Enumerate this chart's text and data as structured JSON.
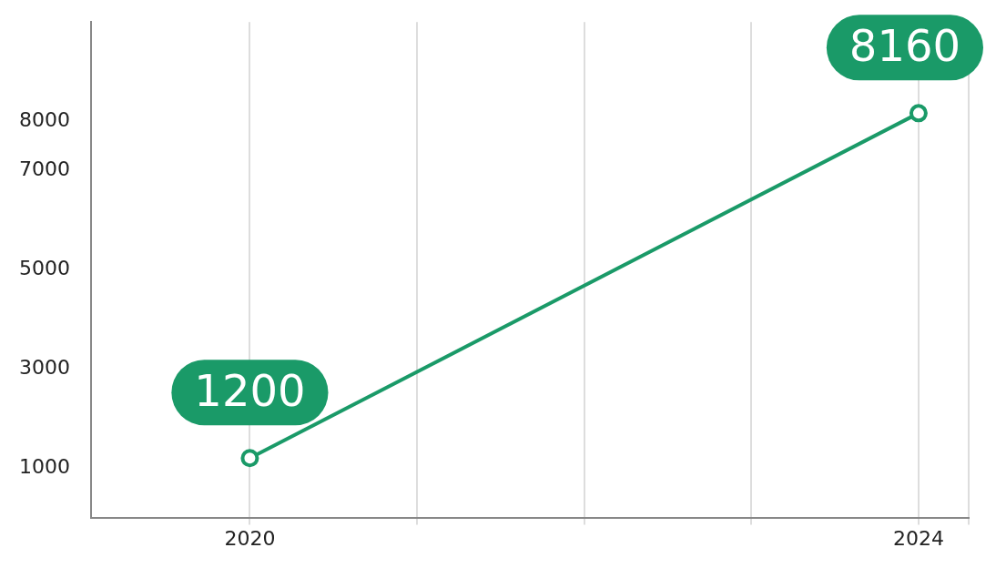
{
  "chart_data": {
    "type": "line",
    "x": [
      2020,
      2024
    ],
    "series": [
      {
        "color": "#1a9a68",
        "values": [
          1200,
          8160
        ]
      }
    ],
    "xlim": [
      2019.05,
      2024.3
    ],
    "xticks": [
      2020,
      {
        "value": 2021,
        "label": null
      },
      {
        "value": 2022,
        "label": null
      },
      {
        "value": 2023,
        "label": null
      },
      2024,
      {
        "value": 2024.3,
        "label": null
      }
    ],
    "ylim": [
      0,
      10000
    ],
    "yticks": [
      1000,
      3000,
      5000,
      7000,
      8000
    ],
    "grid": "x",
    "marker": "circle",
    "line_style": "solid",
    "data_labels": true,
    "legend": false
  }
}
